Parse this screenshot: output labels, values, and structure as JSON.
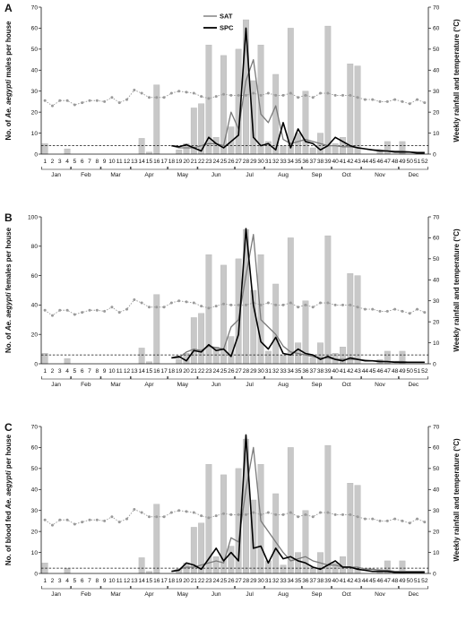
{
  "figure": {
    "legend": [
      {
        "label": "SAT",
        "color": "#7a7a7a"
      },
      {
        "label": "SPC",
        "color": "#000000"
      }
    ],
    "right_axis_label": "Weekly rainfall and temperature (°C)",
    "colors": {
      "rain_bars": "#c8c8c8",
      "temperature": "#9a9a9a",
      "sat": "#7a7a7a",
      "spc": "#000000"
    }
  },
  "chart_data": [
    {
      "panel": "A",
      "type": "bar+line",
      "ylabel": "No. of Ae. aegypti males per house",
      "ylabel_parts": [
        "No. of ",
        "Ae. aegypti",
        " males per house"
      ],
      "y2label": "Weekly rainfall and temperature (°C)",
      "ylim": [
        0,
        70
      ],
      "y2lim": [
        0,
        70
      ],
      "yticks": [
        0,
        10,
        20,
        30,
        40,
        50,
        60,
        70
      ],
      "y2ticks": [
        0,
        10,
        20,
        30,
        40,
        50,
        60,
        70
      ],
      "weeks": [
        1,
        2,
        3,
        4,
        5,
        6,
        7,
        8,
        9,
        10,
        11,
        12,
        13,
        14,
        15,
        16,
        17,
        18,
        19,
        20,
        21,
        22,
        23,
        24,
        25,
        26,
        27,
        28,
        29,
        30,
        31,
        32,
        33,
        34,
        35,
        36,
        37,
        38,
        39,
        40,
        41,
        42,
        43,
        44,
        45,
        46,
        47,
        48,
        49,
        50,
        51,
        52
      ],
      "months": [
        "Jan",
        "Feb",
        "Mar",
        "Apr",
        "May",
        "Jun",
        "Jul",
        "Aug",
        "Sep",
        "Oct",
        "Nov",
        "Dec"
      ],
      "threshold": 4,
      "rainfall": [
        5,
        0,
        0,
        2.5,
        0,
        0,
        0,
        0,
        0,
        0,
        0,
        0,
        0,
        7.5,
        1,
        33,
        0,
        0,
        2,
        5,
        22,
        24,
        52,
        8,
        47,
        13,
        50,
        64,
        35,
        52,
        6,
        38,
        4,
        60,
        10,
        30,
        3,
        10,
        61,
        5,
        8,
        43,
        42,
        0,
        0,
        2,
        6,
        0,
        6,
        0,
        0,
        0
      ],
      "temperature": [
        25.5,
        23,
        25.5,
        25.5,
        23.5,
        24.5,
        25.5,
        25.5,
        25,
        27,
        24.5,
        26,
        30.5,
        29,
        27,
        27,
        27,
        29,
        30,
        29.5,
        29,
        27.5,
        26.5,
        27.5,
        28.5,
        28,
        28,
        28,
        29,
        28,
        29,
        28,
        28,
        29,
        27,
        28,
        27,
        29,
        29,
        28,
        28,
        28,
        27,
        26,
        26,
        25,
        25,
        26,
        25,
        24,
        26,
        24.5
      ],
      "series": [
        {
          "name": "SAT",
          "x": [
            18,
            19,
            20,
            21,
            22,
            23,
            24,
            25,
            26,
            27,
            28,
            29,
            30,
            31,
            32,
            33,
            34,
            35,
            36,
            37,
            38,
            39,
            40,
            41,
            42,
            43,
            44,
            45,
            46,
            47,
            48,
            49,
            50,
            51,
            52
          ],
          "values": [
            4,
            3,
            3,
            3,
            4,
            5,
            5,
            4,
            20,
            12,
            35,
            45,
            19,
            15,
            23,
            7,
            5,
            6,
            7,
            6,
            5,
            4,
            4,
            3.5,
            3.5,
            3,
            2.5,
            2,
            2,
            1.5,
            1.5,
            1.5,
            1,
            1,
            1
          ]
        },
        {
          "name": "SPC",
          "x": [
            18,
            19,
            20,
            21,
            22,
            23,
            24,
            25,
            26,
            27,
            28,
            29,
            30,
            31,
            32,
            33,
            34,
            35,
            36,
            37,
            38,
            39,
            40,
            41,
            42,
            43,
            44,
            45,
            46,
            47,
            48,
            49,
            50,
            51,
            52
          ],
          "values": [
            4,
            3.5,
            4.5,
            3,
            1.5,
            8,
            5,
            3,
            6,
            9,
            60,
            8,
            4,
            5,
            2,
            15,
            3,
            12,
            6,
            5,
            2,
            4,
            8,
            6,
            4,
            3,
            2.5,
            2,
            1.5,
            1.5,
            1,
            1,
            1,
            0.5,
            0.5
          ]
        }
      ]
    },
    {
      "panel": "B",
      "type": "bar+line",
      "ylabel": "No. of Ae. aegypti females per house",
      "ylabel_parts": [
        "No. of ",
        "Ae. aegypti",
        " females per house"
      ],
      "y2label": "Weekly rainfall and temperature (°C)",
      "ylim": [
        0,
        100
      ],
      "y2lim": [
        0,
        70
      ],
      "yticks": [
        0,
        20,
        40,
        60,
        80,
        100
      ],
      "y2ticks": [
        0,
        10,
        20,
        30,
        40,
        50,
        60,
        70
      ],
      "weeks": [
        1,
        2,
        3,
        4,
        5,
        6,
        7,
        8,
        9,
        10,
        11,
        12,
        13,
        14,
        15,
        16,
        17,
        18,
        19,
        20,
        21,
        22,
        23,
        24,
        25,
        26,
        27,
        28,
        29,
        30,
        31,
        32,
        33,
        34,
        35,
        36,
        37,
        38,
        39,
        40,
        41,
        42,
        43,
        44,
        45,
        46,
        47,
        48,
        49,
        50,
        51,
        52
      ],
      "months": [
        "Jan",
        "Feb",
        "Mar",
        "Apr",
        "May",
        "Jun",
        "Jul",
        "Aug",
        "Sep",
        "Oct",
        "Nov",
        "Dec"
      ],
      "threshold": 6,
      "rainfall": [
        5,
        0,
        0,
        2.5,
        0,
        0,
        0,
        0,
        0,
        0,
        0,
        0,
        0,
        7.5,
        1,
        33,
        0,
        0,
        2,
        5,
        22,
        24,
        52,
        8,
        47,
        13,
        50,
        64,
        35,
        52,
        6,
        38,
        4,
        60,
        10,
        30,
        3,
        10,
        61,
        5,
        8,
        43,
        42,
        0,
        0,
        2,
        6,
        0,
        6,
        0,
        0,
        0
      ],
      "temperature": [
        25.5,
        23,
        25.5,
        25.5,
        23.5,
        24.5,
        25.5,
        25.5,
        25,
        27,
        24.5,
        26,
        30.5,
        29,
        27,
        27,
        27,
        29,
        30,
        29.5,
        29,
        27.5,
        26.5,
        27.5,
        28.5,
        28,
        28,
        28,
        29,
        28,
        29,
        28,
        28,
        29,
        27,
        28,
        27,
        29,
        29,
        28,
        28,
        28,
        27,
        26,
        26,
        25,
        25,
        26,
        25,
        24,
        26,
        24.5
      ],
      "series": [
        {
          "name": "SAT",
          "x": [
            18,
            19,
            20,
            21,
            22,
            23,
            24,
            25,
            26,
            27,
            28,
            29,
            30,
            31,
            32,
            33,
            34,
            35,
            36,
            37,
            38,
            39,
            40,
            41,
            42,
            43,
            44,
            45,
            46,
            47,
            48,
            49,
            50,
            51,
            52
          ],
          "values": [
            4,
            4,
            8,
            10,
            9,
            12,
            11,
            10,
            25,
            30,
            60,
            88,
            30,
            25,
            20,
            12,
            8,
            7,
            6,
            5,
            4,
            4,
            3,
            3,
            3,
            3,
            2.5,
            2,
            2,
            1.5,
            1.5,
            1.5,
            1,
            1,
            1
          ]
        },
        {
          "name": "SPC",
          "x": [
            18,
            19,
            20,
            21,
            22,
            23,
            24,
            25,
            26,
            27,
            28,
            29,
            30,
            31,
            32,
            33,
            34,
            35,
            36,
            37,
            38,
            39,
            40,
            41,
            42,
            43,
            44,
            45,
            46,
            47,
            48,
            49,
            50,
            51,
            52
          ],
          "values": [
            4,
            5,
            2,
            9,
            8,
            13,
            9,
            10,
            5,
            20,
            92,
            40,
            15,
            10,
            18,
            7,
            6,
            10,
            7,
            6,
            3,
            5,
            3,
            2,
            4,
            3,
            2,
            2,
            1.5,
            1.5,
            1,
            1,
            1,
            1,
            1
          ]
        }
      ]
    },
    {
      "panel": "C",
      "type": "bar+line",
      "ylabel": "No. of blood fed Ae. aegypti per house",
      "ylabel_parts": [
        "No. of blood fed ",
        "Ae. aegypti",
        " per house"
      ],
      "y2label": "Weekly rainfall and temperature (°C)",
      "ylim": [
        0,
        70
      ],
      "y2lim": [
        0,
        70
      ],
      "yticks": [
        0,
        10,
        20,
        30,
        40,
        50,
        60,
        70
      ],
      "y2ticks": [
        0,
        10,
        20,
        30,
        40,
        50,
        60,
        70
      ],
      "weeks": [
        1,
        2,
        3,
        4,
        5,
        6,
        7,
        8,
        9,
        10,
        11,
        12,
        13,
        14,
        15,
        16,
        17,
        18,
        19,
        20,
        21,
        22,
        23,
        24,
        25,
        26,
        27,
        28,
        29,
        30,
        31,
        32,
        33,
        34,
        35,
        36,
        37,
        38,
        39,
        40,
        41,
        42,
        43,
        44,
        45,
        46,
        47,
        48,
        49,
        50,
        51,
        52
      ],
      "months": [
        "Jan",
        "Feb",
        "Mar",
        "Apr",
        "May",
        "Jun",
        "Jul",
        "Aug",
        "Sep",
        "Oct",
        "Nov",
        "Dec"
      ],
      "threshold": 2.5,
      "rainfall": [
        5,
        0,
        0,
        2.5,
        0,
        0,
        0,
        0,
        0,
        0,
        0,
        0,
        0,
        7.5,
        1,
        33,
        0,
        0,
        2,
        5,
        22,
        24,
        52,
        8,
        47,
        13,
        50,
        64,
        35,
        52,
        6,
        38,
        4,
        60,
        10,
        30,
        3,
        10,
        61,
        5,
        8,
        43,
        42,
        0,
        0,
        2,
        6,
        0,
        6,
        0,
        0,
        0
      ],
      "temperature": [
        25.5,
        23,
        25.5,
        25.5,
        23.5,
        24.5,
        25.5,
        25.5,
        25,
        27,
        24.5,
        26,
        30.5,
        29,
        27,
        27,
        27,
        29,
        30,
        29.5,
        29,
        27.5,
        26.5,
        27.5,
        28.5,
        28,
        28,
        28,
        29,
        28,
        29,
        28,
        28,
        29,
        27,
        28,
        27,
        29,
        29,
        28,
        28,
        28,
        27,
        26,
        26,
        25,
        25,
        26,
        25,
        24,
        26,
        24.5
      ],
      "series": [
        {
          "name": "SAT",
          "x": [
            18,
            19,
            20,
            21,
            22,
            23,
            24,
            25,
            26,
            27,
            28,
            29,
            30,
            31,
            32,
            33,
            34,
            35,
            36,
            37,
            38,
            39,
            40,
            41,
            42,
            43,
            44,
            45,
            46,
            47,
            48,
            49,
            50,
            51,
            52
          ],
          "values": [
            1,
            2,
            3,
            3,
            4,
            5,
            6,
            5,
            17,
            15,
            40,
            60,
            25,
            20,
            15,
            10,
            6,
            7,
            8,
            6,
            5,
            4,
            4,
            3,
            3,
            3,
            2,
            2,
            1.5,
            1.5,
            1,
            1,
            1,
            1,
            1
          ]
        },
        {
          "name": "SPC",
          "x": [
            18,
            19,
            20,
            21,
            22,
            23,
            24,
            25,
            26,
            27,
            28,
            29,
            30,
            31,
            32,
            33,
            34,
            35,
            36,
            37,
            38,
            39,
            40,
            41,
            42,
            43,
            44,
            45,
            46,
            47,
            48,
            49,
            50,
            51,
            52
          ],
          "values": [
            1,
            1.5,
            5,
            4,
            2,
            7,
            12,
            6,
            10,
            6,
            66,
            12,
            13,
            5,
            12,
            7,
            8,
            6,
            5,
            3,
            2,
            4,
            6,
            3,
            3,
            2,
            1.5,
            1,
            1,
            1,
            0.5,
            0.5,
            0.5,
            0.5,
            0.5
          ]
        }
      ]
    }
  ]
}
